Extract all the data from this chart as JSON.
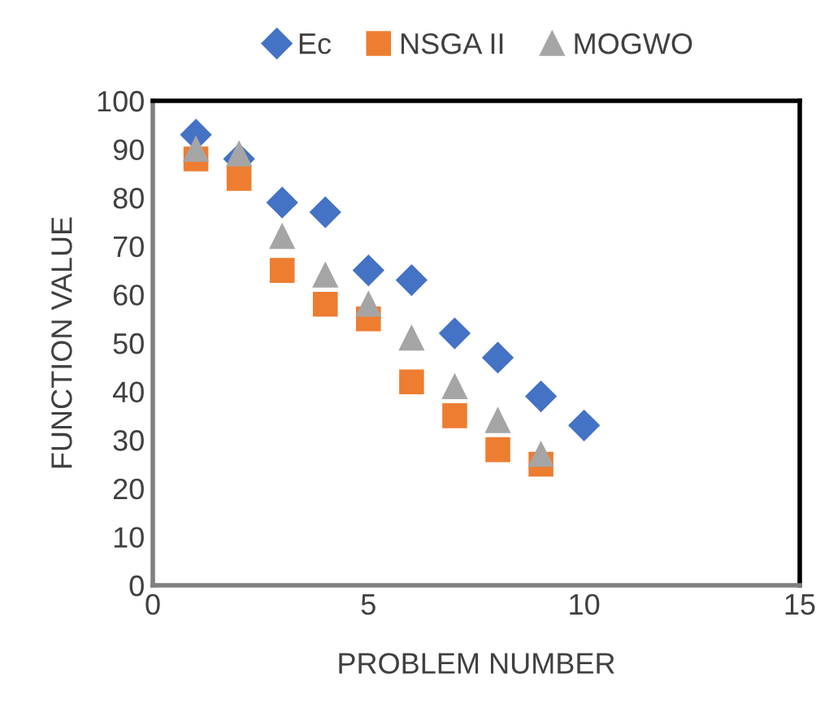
{
  "chart_data": {
    "type": "scatter",
    "xlabel": "PROBLEM NUMBER",
    "ylabel": "FUNCTION VALUE",
    "xlim": [
      0,
      15
    ],
    "xticks": [
      0,
      5,
      10,
      15
    ],
    "ylim": [
      0,
      100
    ],
    "yticks": [
      0,
      10,
      20,
      30,
      40,
      50,
      60,
      70,
      80,
      90,
      100
    ],
    "grid": false,
    "legend": "top",
    "series": [
      {
        "name": "Ec",
        "color": "#4472c4",
        "marker": "diamond",
        "x": [
          1,
          2,
          3,
          4,
          5,
          6,
          7,
          8,
          9,
          10
        ],
        "values": [
          93,
          88,
          79,
          77,
          65,
          63,
          52,
          47,
          39,
          33
        ]
      },
      {
        "name": "NSGA II",
        "color": "#ed7d31",
        "marker": "square",
        "x": [
          1,
          2,
          3,
          4,
          5,
          6,
          7,
          8,
          9
        ],
        "values": [
          88,
          84,
          65,
          58,
          55,
          42,
          35,
          28,
          25
        ]
      },
      {
        "name": "MOGWO",
        "color": "#a5a5a5",
        "marker": "triangle",
        "x": [
          1,
          2,
          3,
          4,
          5,
          6,
          7,
          8,
          9
        ],
        "values": [
          90,
          89,
          72,
          64,
          58,
          51,
          41,
          34,
          27
        ]
      }
    ]
  }
}
